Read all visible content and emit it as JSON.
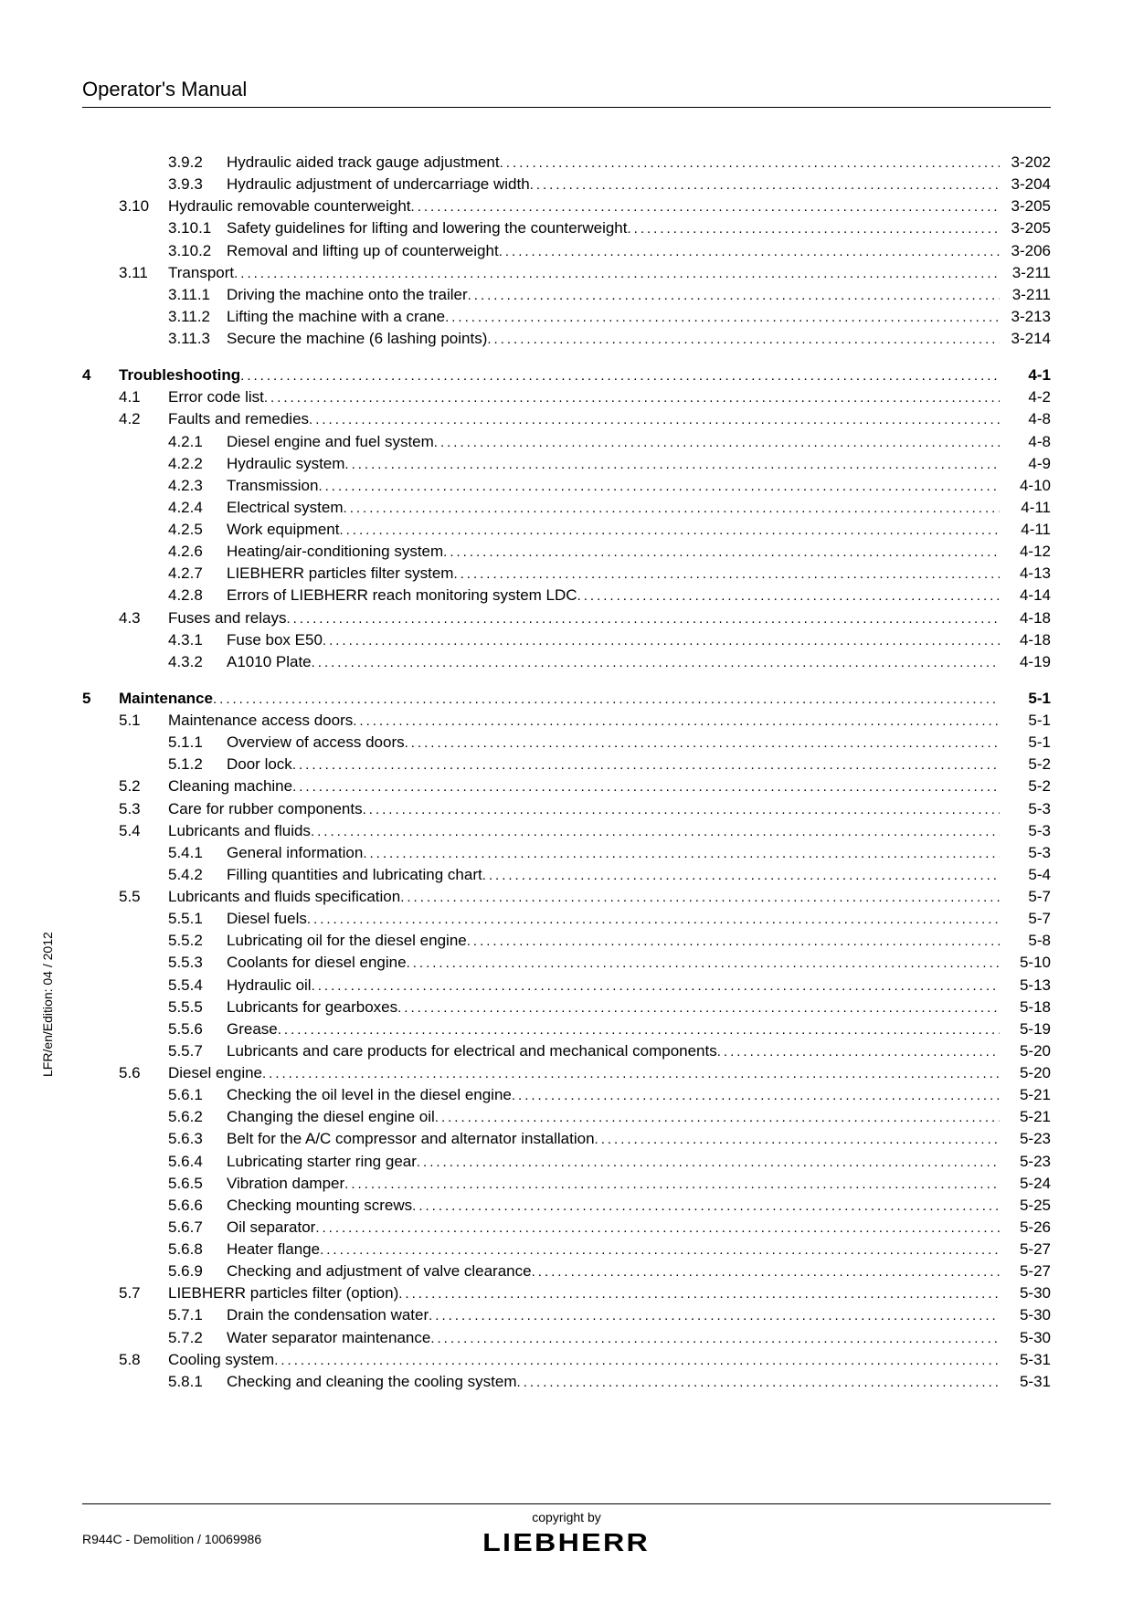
{
  "header": "Operator's Manual",
  "sidebar": "LFR/en/Edition: 04 / 2012",
  "docref": "R944C - Demolition / 10069986",
  "copyright": "copyright by",
  "logo": "LIEBHERR",
  "rows": [
    {
      "type": "sub",
      "c": "",
      "s": "",
      "u": "3.9.2",
      "t": "Hydraulic aided track gauge adjustment",
      "p": "3-202"
    },
    {
      "type": "sub",
      "c": "",
      "s": "",
      "u": "3.9.3",
      "t": "Hydraulic adjustment of undercarriage width",
      "p": "3-204"
    },
    {
      "type": "sec",
      "c": "",
      "s": "3.10",
      "t": "Hydraulic removable counterweight",
      "p": "3-205"
    },
    {
      "type": "sub",
      "c": "",
      "s": "",
      "u": "3.10.1",
      "t": "Safety guidelines for lifting and lowering the counterweight",
      "p": "3-205"
    },
    {
      "type": "sub",
      "c": "",
      "s": "",
      "u": "3.10.2",
      "t": "Removal and lifting up of counterweight",
      "p": "3-206"
    },
    {
      "type": "sec",
      "c": "",
      "s": "3.11",
      "t": "Transport",
      "p": "3-211"
    },
    {
      "type": "sub",
      "c": "",
      "s": "",
      "u": "3.11.1",
      "t": "Driving the machine onto the trailer",
      "p": "3-211"
    },
    {
      "type": "sub",
      "c": "",
      "s": "",
      "u": "3.11.2",
      "t": "Lifting the machine with a crane",
      "p": "3-213"
    },
    {
      "type": "sub",
      "c": "",
      "s": "",
      "u": "3.11.3",
      "t": "Secure the machine (6 lashing points)",
      "p": "3-214"
    },
    {
      "type": "gap"
    },
    {
      "type": "ch",
      "c": "4",
      "t": "Troubleshooting",
      "p": "4-1",
      "bold": true
    },
    {
      "type": "sec",
      "c": "",
      "s": "4.1",
      "t": "Error code list",
      "p": "4-2"
    },
    {
      "type": "sec",
      "c": "",
      "s": "4.2",
      "t": "Faults and remedies",
      "p": "4-8"
    },
    {
      "type": "sub",
      "c": "",
      "s": "",
      "u": "4.2.1",
      "t": "Diesel engine and fuel system",
      "p": "4-8"
    },
    {
      "type": "sub",
      "c": "",
      "s": "",
      "u": "4.2.2",
      "t": "Hydraulic system",
      "p": "4-9"
    },
    {
      "type": "sub",
      "c": "",
      "s": "",
      "u": "4.2.3",
      "t": "Transmission",
      "p": "4-10"
    },
    {
      "type": "sub",
      "c": "",
      "s": "",
      "u": "4.2.4",
      "t": "Electrical system",
      "p": "4-11"
    },
    {
      "type": "sub",
      "c": "",
      "s": "",
      "u": "4.2.5",
      "t": "Work equipment",
      "p": "4-11"
    },
    {
      "type": "sub",
      "c": "",
      "s": "",
      "u": "4.2.6",
      "t": "Heating/air-conditioning system",
      "p": "4-12"
    },
    {
      "type": "sub",
      "c": "",
      "s": "",
      "u": "4.2.7",
      "t": "LIEBHERR particles filter system",
      "p": "4-13"
    },
    {
      "type": "sub",
      "c": "",
      "s": "",
      "u": "4.2.8",
      "t": "Errors of LIEBHERR reach monitoring system LDC",
      "p": "4-14"
    },
    {
      "type": "sec",
      "c": "",
      "s": "4.3",
      "t": "Fuses and relays",
      "p": "4-18"
    },
    {
      "type": "sub",
      "c": "",
      "s": "",
      "u": "4.3.1",
      "t": "Fuse box E50",
      "p": "4-18"
    },
    {
      "type": "sub",
      "c": "",
      "s": "",
      "u": "4.3.2",
      "t": "A1010 Plate",
      "p": "4-19"
    },
    {
      "type": "gap"
    },
    {
      "type": "ch",
      "c": "5",
      "t": "Maintenance",
      "p": "5-1",
      "bold": true
    },
    {
      "type": "sec",
      "c": "",
      "s": "5.1",
      "t": "Maintenance access doors",
      "p": "5-1"
    },
    {
      "type": "sub",
      "c": "",
      "s": "",
      "u": "5.1.1",
      "t": "Overview of access doors",
      "p": "5-1"
    },
    {
      "type": "sub",
      "c": "",
      "s": "",
      "u": "5.1.2",
      "t": "Door lock",
      "p": "5-2"
    },
    {
      "type": "sec",
      "c": "",
      "s": "5.2",
      "t": "Cleaning machine",
      "p": "5-2"
    },
    {
      "type": "sec",
      "c": "",
      "s": "5.3",
      "t": "Care for rubber components",
      "p": "5-3"
    },
    {
      "type": "sec",
      "c": "",
      "s": "5.4",
      "t": "Lubricants and fluids",
      "p": "5-3"
    },
    {
      "type": "sub",
      "c": "",
      "s": "",
      "u": "5.4.1",
      "t": "General information",
      "p": "5-3"
    },
    {
      "type": "sub",
      "c": "",
      "s": "",
      "u": "5.4.2",
      "t": "Filling quantities and lubricating chart",
      "p": "5-4"
    },
    {
      "type": "sec",
      "c": "",
      "s": "5.5",
      "t": "Lubricants and fluids specification",
      "p": "5-7"
    },
    {
      "type": "sub",
      "c": "",
      "s": "",
      "u": "5.5.1",
      "t": "Diesel fuels",
      "p": "5-7"
    },
    {
      "type": "sub",
      "c": "",
      "s": "",
      "u": "5.5.2",
      "t": "Lubricating oil for the diesel engine",
      "p": "5-8"
    },
    {
      "type": "sub",
      "c": "",
      "s": "",
      "u": "5.5.3",
      "t": "Coolants for diesel engine",
      "p": "5-10"
    },
    {
      "type": "sub",
      "c": "",
      "s": "",
      "u": "5.5.4",
      "t": "Hydraulic oil",
      "p": "5-13"
    },
    {
      "type": "sub",
      "c": "",
      "s": "",
      "u": "5.5.5",
      "t": "Lubricants for gearboxes",
      "p": "5-18"
    },
    {
      "type": "sub",
      "c": "",
      "s": "",
      "u": "5.5.6",
      "t": "Grease",
      "p": "5-19"
    },
    {
      "type": "sub",
      "c": "",
      "s": "",
      "u": "5.5.7",
      "t": "Lubricants and care products for electrical and mechanical components",
      "p": "5-20"
    },
    {
      "type": "sec",
      "c": "",
      "s": "5.6",
      "t": "Diesel engine",
      "p": "5-20"
    },
    {
      "type": "sub",
      "c": "",
      "s": "",
      "u": "5.6.1",
      "t": "Checking the oil level in the diesel engine",
      "p": "5-21"
    },
    {
      "type": "sub",
      "c": "",
      "s": "",
      "u": "5.6.2",
      "t": "Changing the diesel engine oil",
      "p": "5-21"
    },
    {
      "type": "sub",
      "c": "",
      "s": "",
      "u": "5.6.3",
      "t": "Belt for the A/C compressor and alternator installation",
      "p": "5-23"
    },
    {
      "type": "sub",
      "c": "",
      "s": "",
      "u": "5.6.4",
      "t": "Lubricating starter ring gear",
      "p": "5-23"
    },
    {
      "type": "sub",
      "c": "",
      "s": "",
      "u": "5.6.5",
      "t": "Vibration damper",
      "p": "5-24"
    },
    {
      "type": "sub",
      "c": "",
      "s": "",
      "u": "5.6.6",
      "t": "Checking mounting screws",
      "p": "5-25"
    },
    {
      "type": "sub",
      "c": "",
      "s": "",
      "u": "5.6.7",
      "t": "Oil separator",
      "p": "5-26"
    },
    {
      "type": "sub",
      "c": "",
      "s": "",
      "u": "5.6.8",
      "t": "Heater flange",
      "p": "5-27"
    },
    {
      "type": "sub",
      "c": "",
      "s": "",
      "u": "5.6.9",
      "t": "Checking and adjustment of valve clearance",
      "p": "5-27"
    },
    {
      "type": "sec",
      "c": "",
      "s": "5.7",
      "t": "LIEBHERR particles filter (option)",
      "p": "5-30"
    },
    {
      "type": "sub",
      "c": "",
      "s": "",
      "u": "5.7.1",
      "t": "Drain the condensation water",
      "p": "5-30"
    },
    {
      "type": "sub",
      "c": "",
      "s": "",
      "u": "5.7.2",
      "t": "Water separator maintenance",
      "p": "5-30"
    },
    {
      "type": "sec",
      "c": "",
      "s": "5.8",
      "t": "Cooling system",
      "p": "5-31"
    },
    {
      "type": "sub",
      "c": "",
      "s": "",
      "u": "5.8.1",
      "t": "Checking and cleaning the cooling system",
      "p": "5-31"
    }
  ]
}
